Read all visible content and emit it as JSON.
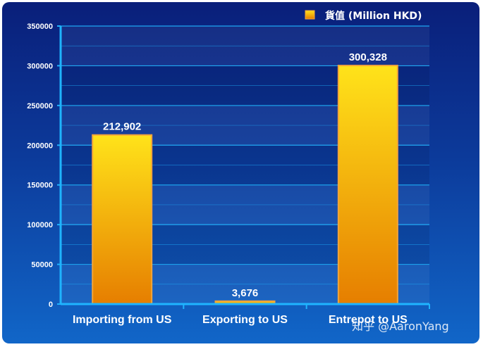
{
  "chart_data": {
    "type": "bar",
    "categories": [
      "Importing from US",
      "Exporting to US",
      "Entrepot to US"
    ],
    "series": [
      {
        "name": "貨值 (Million HKD)",
        "values": [
          212902,
          3676,
          300328
        ]
      }
    ],
    "data_labels": [
      "212,902",
      "3,676",
      "300,328"
    ],
    "yticks": [
      "0",
      "50000",
      "100000",
      "150000",
      "200000",
      "250000",
      "300000",
      "350000"
    ],
    "ylim": [
      0,
      350000
    ],
    "title": "",
    "xlabel": "",
    "ylabel": "",
    "grid": true,
    "legend_position": "top-right",
    "colors": {
      "bar_top": "#ffe31a",
      "bar_bottom": "#e67e00",
      "bar_border": "#f2a43a",
      "axis": "#1fb4ff"
    }
  },
  "watermark": "知乎 @AaronYang"
}
